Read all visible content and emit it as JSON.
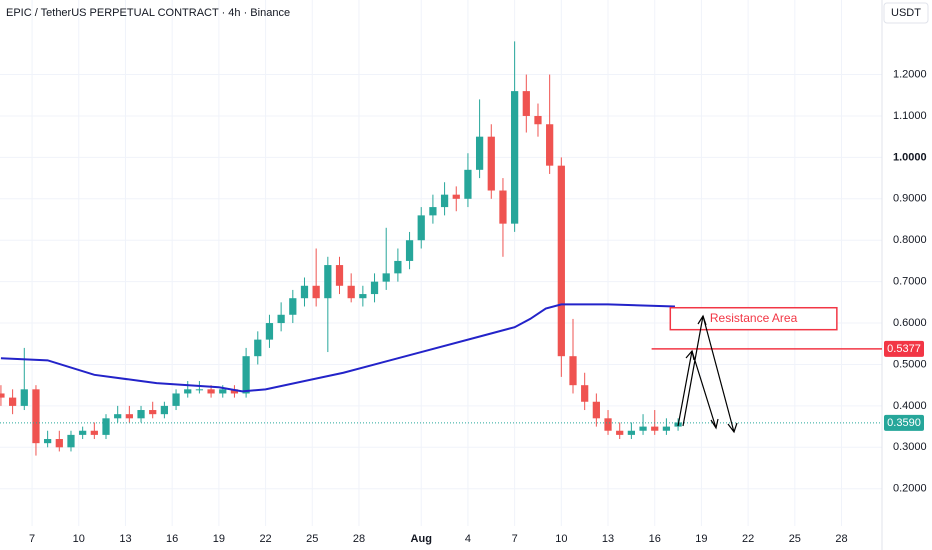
{
  "chart_data": {
    "type": "candlestick",
    "title": "EPIC / TetherUS PERPETUAL CONTRACT · 4h · Binance",
    "currency": "USDT",
    "up_color": "#26a69a",
    "down_color": "#ef5350",
    "grid": true,
    "xlim": [
      -2.06,
      54.6
    ],
    "ylim": [
      0.11,
      1.38
    ],
    "xticks": [
      {
        "value": 0,
        "label": "7"
      },
      {
        "value": 3,
        "label": "10"
      },
      {
        "value": 6,
        "label": "13"
      },
      {
        "value": 9,
        "label": "16"
      },
      {
        "value": 12,
        "label": "19"
      },
      {
        "value": 15,
        "label": "22"
      },
      {
        "value": 18,
        "label": "25"
      },
      {
        "value": 21,
        "label": "28"
      },
      {
        "value": 25,
        "label": "Aug"
      },
      {
        "value": 28,
        "label": "4"
      },
      {
        "value": 31,
        "label": "7"
      },
      {
        "value": 34,
        "label": "10"
      },
      {
        "value": 37,
        "label": "13"
      },
      {
        "value": 40,
        "label": "16"
      },
      {
        "value": 43,
        "label": "19"
      },
      {
        "value": 46,
        "label": "22"
      },
      {
        "value": 49,
        "label": "25"
      },
      {
        "value": 52,
        "label": "28"
      }
    ],
    "yticks": [
      {
        "value": 0.2,
        "label": "0.2000"
      },
      {
        "value": 0.3,
        "label": "0.3000"
      },
      {
        "value": 0.4,
        "label": "0.4000"
      },
      {
        "value": 0.5,
        "label": "0.5000"
      },
      {
        "value": 0.6,
        "label": "0.6000"
      },
      {
        "value": 0.7,
        "label": "0.7000"
      },
      {
        "value": 0.8,
        "label": "0.8000"
      },
      {
        "value": 0.9,
        "label": "0.9000"
      },
      {
        "value": 1.0,
        "label": "1.0000"
      },
      {
        "value": 1.1,
        "label": "1.1000"
      },
      {
        "value": 1.2,
        "label": "1.2000"
      }
    ],
    "x": [
      -2,
      -1.25,
      -0.5,
      0.25,
      1,
      1.75,
      2.5,
      3.25,
      4,
      4.75,
      5.5,
      6.25,
      7,
      7.75,
      8.5,
      9.25,
      10,
      10.75,
      11.5,
      12.25,
      13,
      13.75,
      14.5,
      15.25,
      16,
      16.75,
      17.5,
      18.25,
      19,
      19.75,
      20.5,
      21.25,
      22,
      22.75,
      23.5,
      24.25,
      25,
      25.75,
      26.5,
      27.25,
      28,
      28.75,
      29.5,
      30.25,
      31,
      31.75,
      32.5,
      33.25,
      34,
      34.75,
      35.5,
      36.25,
      37,
      37.75,
      38.5,
      39.25,
      40,
      40.75,
      41.5
    ],
    "open": [
      0.43,
      0.42,
      0.4,
      0.44,
      0.31,
      0.32,
      0.3,
      0.33,
      0.34,
      0.33,
      0.37,
      0.38,
      0.37,
      0.39,
      0.38,
      0.4,
      0.43,
      0.44,
      0.44,
      0.43,
      0.44,
      0.43,
      0.52,
      0.56,
      0.6,
      0.62,
      0.66,
      0.69,
      0.66,
      0.74,
      0.69,
      0.66,
      0.67,
      0.7,
      0.72,
      0.75,
      0.8,
      0.86,
      0.88,
      0.91,
      0.9,
      0.97,
      1.05,
      0.92,
      0.84,
      1.16,
      1.1,
      1.08,
      0.98,
      0.52,
      0.45,
      0.41,
      0.37,
      0.34,
      0.33,
      0.34,
      0.35,
      0.34,
      0.35
    ],
    "high": [
      0.45,
      0.44,
      0.54,
      0.45,
      0.34,
      0.34,
      0.34,
      0.35,
      0.36,
      0.38,
      0.4,
      0.4,
      0.4,
      0.41,
      0.41,
      0.44,
      0.46,
      0.46,
      0.45,
      0.45,
      0.45,
      0.54,
      0.58,
      0.62,
      0.65,
      0.68,
      0.71,
      0.78,
      0.76,
      0.76,
      0.72,
      0.69,
      0.72,
      0.83,
      0.78,
      0.82,
      0.88,
      0.91,
      0.94,
      0.93,
      1.01,
      1.14,
      1.08,
      0.95,
      1.28,
      1.2,
      1.13,
      1.2,
      1.0,
      0.61,
      0.48,
      0.43,
      0.39,
      0.36,
      0.36,
      0.38,
      0.39,
      0.37,
      0.37
    ],
    "low": [
      0.4,
      0.38,
      0.39,
      0.28,
      0.3,
      0.29,
      0.29,
      0.32,
      0.32,
      0.32,
      0.36,
      0.36,
      0.36,
      0.37,
      0.37,
      0.39,
      0.42,
      0.43,
      0.42,
      0.42,
      0.42,
      0.42,
      0.5,
      0.54,
      0.58,
      0.6,
      0.64,
      0.64,
      0.53,
      0.67,
      0.65,
      0.64,
      0.65,
      0.68,
      0.7,
      0.73,
      0.78,
      0.84,
      0.86,
      0.87,
      0.88,
      0.95,
      0.9,
      0.76,
      0.82,
      1.06,
      1.05,
      0.96,
      0.47,
      0.43,
      0.39,
      0.35,
      0.33,
      0.32,
      0.32,
      0.33,
      0.33,
      0.33,
      0.34
    ],
    "close": [
      0.42,
      0.4,
      0.44,
      0.31,
      0.32,
      0.3,
      0.33,
      0.34,
      0.33,
      0.37,
      0.38,
      0.37,
      0.39,
      0.38,
      0.4,
      0.43,
      0.44,
      0.44,
      0.43,
      0.44,
      0.43,
      0.52,
      0.56,
      0.6,
      0.62,
      0.66,
      0.69,
      0.66,
      0.74,
      0.69,
      0.66,
      0.67,
      0.7,
      0.72,
      0.75,
      0.8,
      0.86,
      0.88,
      0.91,
      0.9,
      0.97,
      1.05,
      0.92,
      0.84,
      1.16,
      1.1,
      1.08,
      0.98,
      0.52,
      0.45,
      0.41,
      0.37,
      0.34,
      0.33,
      0.34,
      0.35,
      0.34,
      0.35,
      0.36
    ],
    "moving_average": {
      "color": "#2323c9",
      "x": [
        -2,
        1,
        4,
        8,
        12,
        13.5,
        15,
        20,
        25,
        29,
        31,
        32,
        33,
        34,
        37,
        41.3
      ],
      "values": [
        0.515,
        0.51,
        0.475,
        0.455,
        0.445,
        0.435,
        0.44,
        0.48,
        0.53,
        0.57,
        0.59,
        0.61,
        0.635,
        0.645,
        0.645,
        0.64
      ]
    },
    "last_price": {
      "value": 0.359,
      "label": "0.3590",
      "color": "#26a69a"
    },
    "price_line": {
      "value": 0.5377,
      "color": "#f23645",
      "start": 39.8
    },
    "resistance": {
      "label": "Resistance Area",
      "low": 0.584,
      "high": 0.637,
      "start": 41,
      "end": 51.7,
      "color": "#f23645"
    }
  }
}
